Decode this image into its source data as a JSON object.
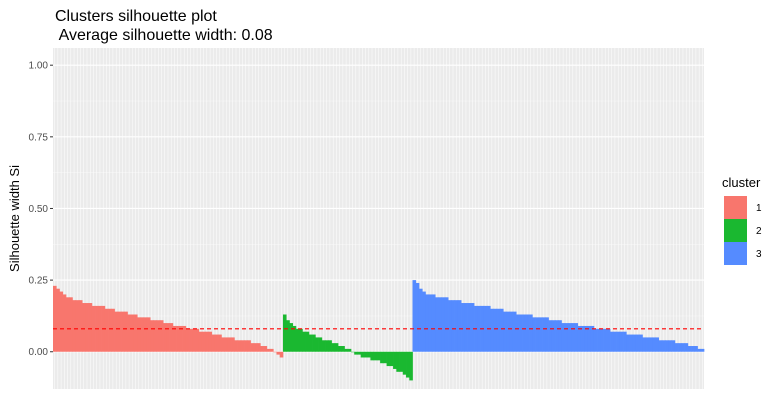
{
  "chart_data": {
    "type": "bar",
    "title": "Clusters silhouette plot",
    "subtitle": " Average silhouette width: 0.08",
    "xlabel": "",
    "ylabel": "Silhouette width Si",
    "ylim": [
      -0.13,
      1.06
    ],
    "yticks": [
      0.0,
      0.25,
      0.5,
      0.75,
      1.0
    ],
    "ytick_labels": [
      "0.00",
      "0.25",
      "0.50",
      "0.75",
      "1.00"
    ],
    "grid": true,
    "average_line": 0.08,
    "average_line_color": "#ff0000",
    "legend_title": "cluster",
    "legend_position": "right",
    "series": [
      {
        "name": "1",
        "color": "#F8766D",
        "values": [
          0.23,
          0.22,
          0.21,
          0.2,
          0.19,
          0.19,
          0.18,
          0.18,
          0.18,
          0.17,
          0.17,
          0.17,
          0.16,
          0.16,
          0.16,
          0.16,
          0.15,
          0.15,
          0.15,
          0.14,
          0.14,
          0.14,
          0.14,
          0.13,
          0.13,
          0.13,
          0.12,
          0.12,
          0.12,
          0.12,
          0.11,
          0.11,
          0.11,
          0.11,
          0.1,
          0.1,
          0.1,
          0.09,
          0.09,
          0.09,
          0.09,
          0.08,
          0.08,
          0.08,
          0.08,
          0.07,
          0.07,
          0.07,
          0.07,
          0.06,
          0.06,
          0.06,
          0.05,
          0.05,
          0.05,
          0.05,
          0.04,
          0.04,
          0.04,
          0.04,
          0.04,
          0.03,
          0.03,
          0.03,
          0.02,
          0.02,
          0.01,
          0.01,
          0.0,
          -0.01,
          -0.02
        ]
      },
      {
        "name": "2",
        "color": "#1AB830",
        "values": [
          0.13,
          0.11,
          0.1,
          0.09,
          0.08,
          0.08,
          0.07,
          0.07,
          0.06,
          0.06,
          0.05,
          0.05,
          0.04,
          0.04,
          0.04,
          0.03,
          0.03,
          0.02,
          0.02,
          0.01,
          0.01,
          0.0,
          -0.01,
          -0.01,
          -0.02,
          -0.02,
          -0.02,
          -0.03,
          -0.03,
          -0.03,
          -0.04,
          -0.04,
          -0.05,
          -0.05,
          -0.06,
          -0.07,
          -0.07,
          -0.08,
          -0.09,
          -0.1
        ]
      },
      {
        "name": "3",
        "color": "#558BFF",
        "values": [
          0.25,
          0.24,
          0.22,
          0.21,
          0.2,
          0.2,
          0.2,
          0.19,
          0.19,
          0.19,
          0.19,
          0.18,
          0.18,
          0.18,
          0.18,
          0.17,
          0.17,
          0.17,
          0.17,
          0.16,
          0.16,
          0.16,
          0.16,
          0.16,
          0.15,
          0.15,
          0.15,
          0.15,
          0.14,
          0.14,
          0.14,
          0.14,
          0.13,
          0.13,
          0.13,
          0.13,
          0.13,
          0.12,
          0.12,
          0.12,
          0.12,
          0.12,
          0.11,
          0.11,
          0.11,
          0.11,
          0.1,
          0.1,
          0.1,
          0.1,
          0.1,
          0.09,
          0.09,
          0.09,
          0.09,
          0.09,
          0.08,
          0.08,
          0.08,
          0.08,
          0.08,
          0.07,
          0.07,
          0.07,
          0.07,
          0.07,
          0.06,
          0.06,
          0.06,
          0.06,
          0.06,
          0.05,
          0.05,
          0.05,
          0.05,
          0.05,
          0.04,
          0.04,
          0.04,
          0.04,
          0.04,
          0.03,
          0.03,
          0.03,
          0.03,
          0.02,
          0.02,
          0.02,
          0.01,
          0.01
        ]
      }
    ]
  }
}
